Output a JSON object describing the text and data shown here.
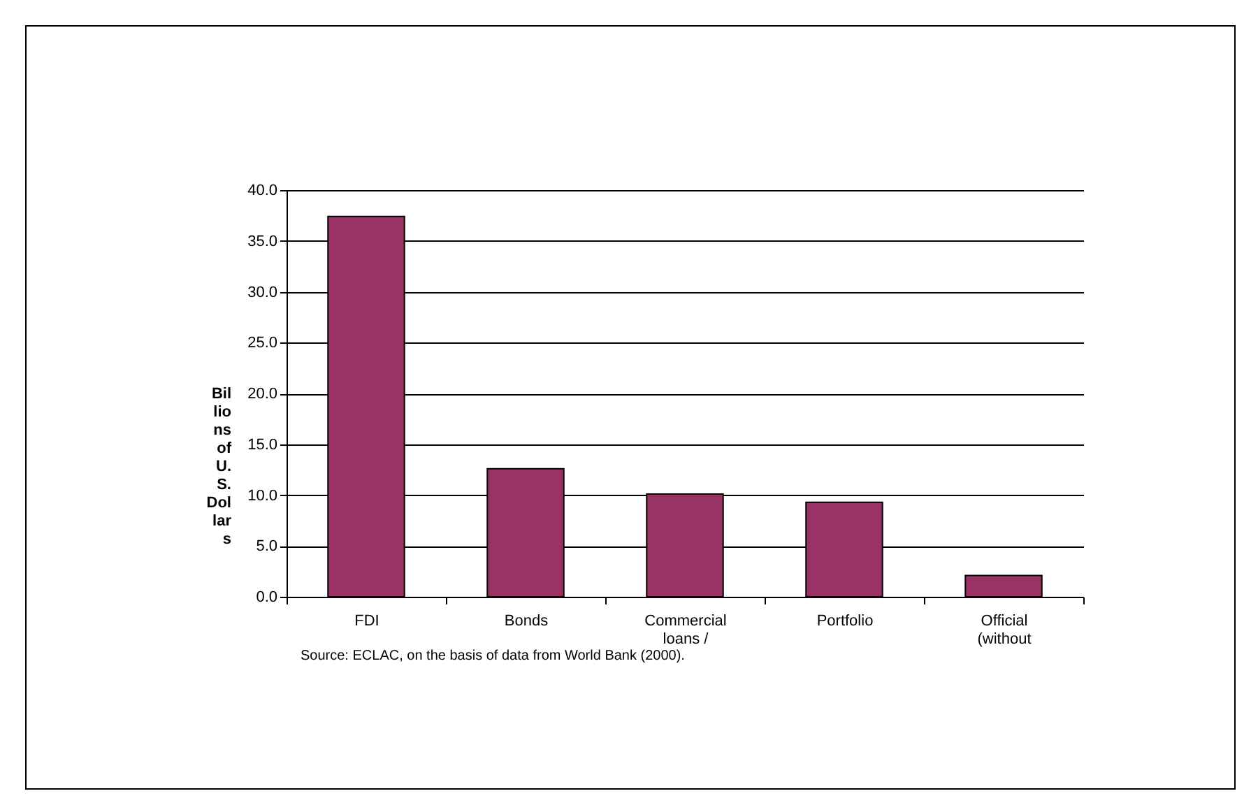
{
  "chart_data": {
    "type": "bar",
    "ylabel": "Billions of U.S. Dollars",
    "categories": [
      "FDI",
      "Bonds",
      "Commercial loans /",
      "Portfolio",
      "Official (without"
    ],
    "values": [
      37.4,
      12.6,
      10.1,
      9.3,
      2.1
    ],
    "color": "#993366",
    "ylim": [
      0,
      40
    ],
    "yticks": [
      {
        "value": 0,
        "label": "0.0"
      },
      {
        "value": 5,
        "label": "5.0"
      },
      {
        "value": 10,
        "label": "10.0"
      },
      {
        "value": 15,
        "label": "15.0"
      },
      {
        "value": 20,
        "label": "20.0"
      },
      {
        "value": 25,
        "label": "25.0"
      },
      {
        "value": 30,
        "label": "30.0"
      },
      {
        "value": 35,
        "label": "35.0"
      },
      {
        "value": 40,
        "label": "40.0"
      }
    ],
    "grid": "y",
    "annotations": [
      "Source: ECLAC, on the basis of data from World Bank (2000)."
    ]
  }
}
